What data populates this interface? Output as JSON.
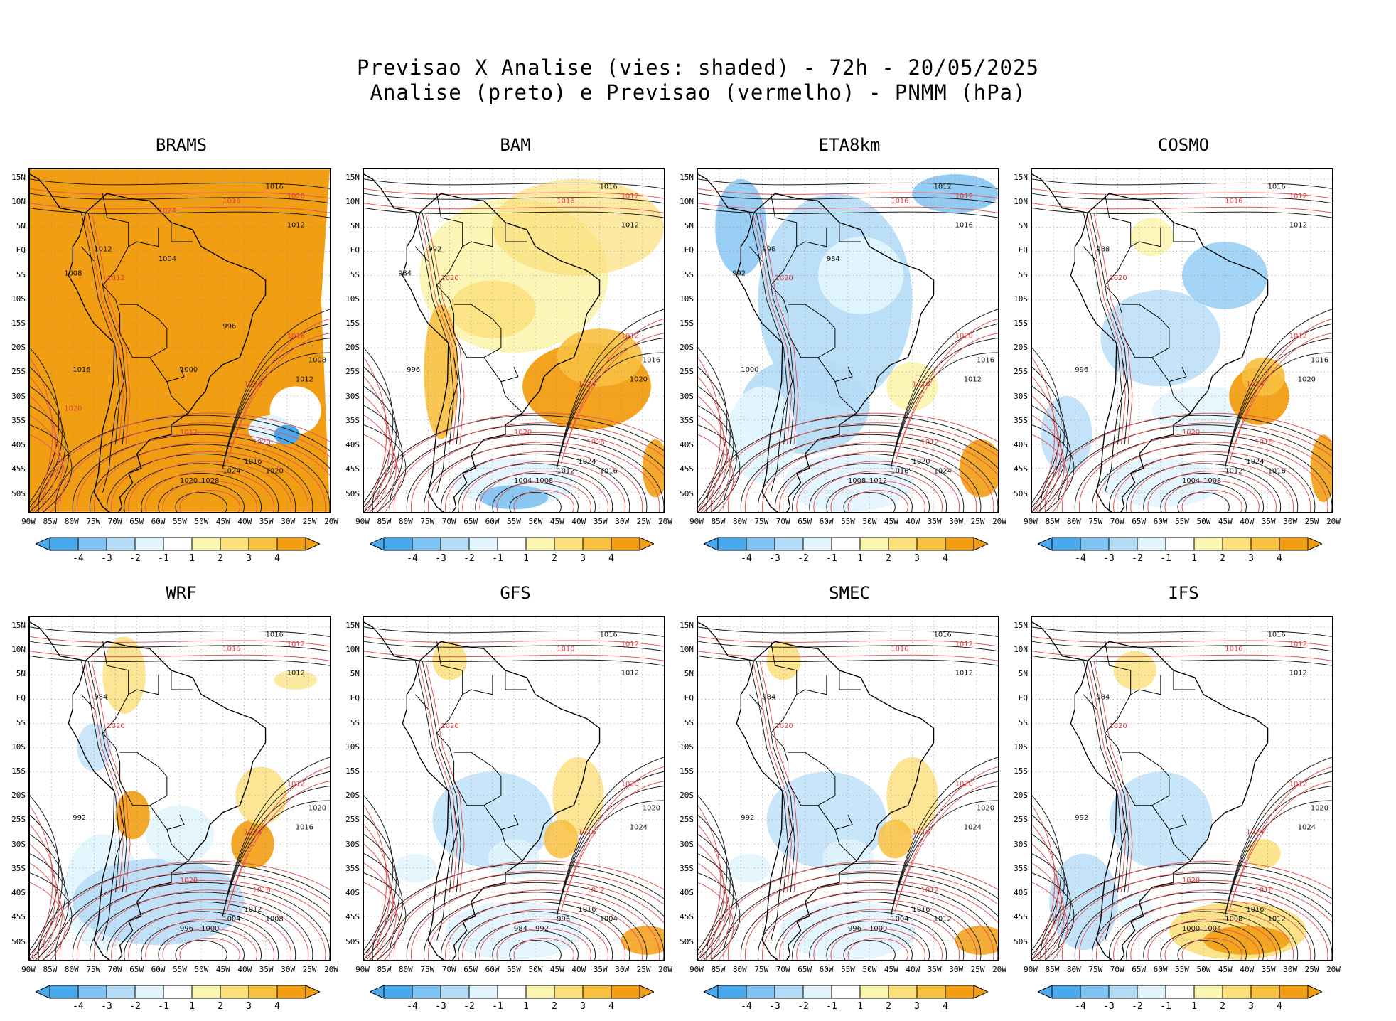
{
  "header": {
    "title_line1": "Previsao X Analise (vies: shaded) - 72h - 20/05/2025",
    "title_line2": "Analise (preto) e Previsao (vermelho) - PNMM (hPa)"
  },
  "lat_labels": [
    "15N",
    "10N",
    "5N",
    "EQ",
    "5S",
    "10S",
    "15S",
    "20S",
    "25S",
    "30S",
    "35S",
    "40S",
    "45S",
    "50S"
  ],
  "lon_labels": [
    "90W",
    "85W",
    "80W",
    "75W",
    "70W",
    "65W",
    "60W",
    "55W",
    "50W",
    "45W",
    "40W",
    "35W",
    "30W",
    "25W",
    "20W"
  ],
  "colorbar": {
    "labels": [
      "-4",
      "-3",
      "-2",
      "-1",
      "1",
      "2",
      "3",
      "4"
    ],
    "colors": [
      "#4aa8ec",
      "#7fc3f2",
      "#b5dcf7",
      "#e2f4fd",
      "#ffffff",
      "#fcf5b2",
      "#fbe07a",
      "#f8c03f",
      "#f29e12"
    ]
  },
  "panels": [
    {
      "id": "brams",
      "title": "BRAMS",
      "bias": "warm-all",
      "labels_black": [
        "1016",
        "1012",
        "1008",
        "1012",
        "1016",
        "1020",
        "1024",
        "1028",
        "1020",
        "1016",
        "1012",
        "1008",
        "1004",
        "1000",
        "996"
      ],
      "labels_red": [
        "1016",
        "1020",
        "1012",
        "1024",
        "1020",
        "1016",
        "1012",
        "1020",
        "1024"
      ]
    },
    {
      "id": "bam",
      "title": "BAM",
      "bias": "warm",
      "labels_black": [
        "1016",
        "1012",
        "1016",
        "1020",
        "1024",
        "1016",
        "1012",
        "1008",
        "1004",
        "996",
        "992",
        "984"
      ],
      "labels_red": [
        "1016",
        "1012",
        "1020",
        "1024",
        "1016",
        "1012",
        "1020"
      ]
    },
    {
      "id": "eta8km",
      "title": "ETA8km",
      "bias": "cold",
      "labels_black": [
        "1012",
        "1016",
        "1016",
        "1012",
        "1020",
        "1024",
        "1016",
        "1012",
        "1008",
        "1000",
        "996",
        "992",
        "984"
      ],
      "labels_red": [
        "1016",
        "1012",
        "1020",
        "1016",
        "1012",
        "1020"
      ]
    },
    {
      "id": "cosmo",
      "title": "COSMO",
      "bias": "mixed",
      "labels_black": [
        "1016",
        "1012",
        "1016",
        "1020",
        "1024",
        "1016",
        "1012",
        "1008",
        "1004",
        "996",
        "988"
      ],
      "labels_red": [
        "1016",
        "1012",
        "1020",
        "1024",
        "1016",
        "1012",
        "1020"
      ]
    },
    {
      "id": "wrf",
      "title": "WRF",
      "bias": "mixed-cold",
      "labels_black": [
        "1016",
        "1012",
        "1020",
        "1016",
        "1012",
        "1008",
        "1004",
        "1000",
        "996",
        "992",
        "984"
      ],
      "labels_red": [
        "1016",
        "1012",
        "1020",
        "1024",
        "1016",
        "1012",
        "1020"
      ]
    },
    {
      "id": "gfs",
      "title": "GFS",
      "bias": "weak",
      "labels_black": [
        "1016",
        "1012",
        "1020",
        "1024",
        "1016",
        "1004",
        "996",
        "992",
        "984"
      ],
      "labels_red": [
        "1016",
        "1012",
        "1020",
        "1016",
        "1012",
        "1020"
      ]
    },
    {
      "id": "smec",
      "title": "SMEC",
      "bias": "weak",
      "labels_black": [
        "1016",
        "1012",
        "1020",
        "1024",
        "1016",
        "1012",
        "1004",
        "1000",
        "996",
        "992",
        "984"
      ],
      "labels_red": [
        "1016",
        "1012",
        "1020",
        "1016",
        "1012",
        "1020"
      ]
    },
    {
      "id": "ifs",
      "title": "IFS",
      "bias": "weak-warm-south",
      "labels_black": [
        "1016",
        "1012",
        "1020",
        "1024",
        "1016",
        "1012",
        "1008",
        "1004",
        "1000",
        "992",
        "984"
      ],
      "labels_red": [
        "1016",
        "1012",
        "1020",
        "1024",
        "1016",
        "1012",
        "1020"
      ]
    }
  ]
}
